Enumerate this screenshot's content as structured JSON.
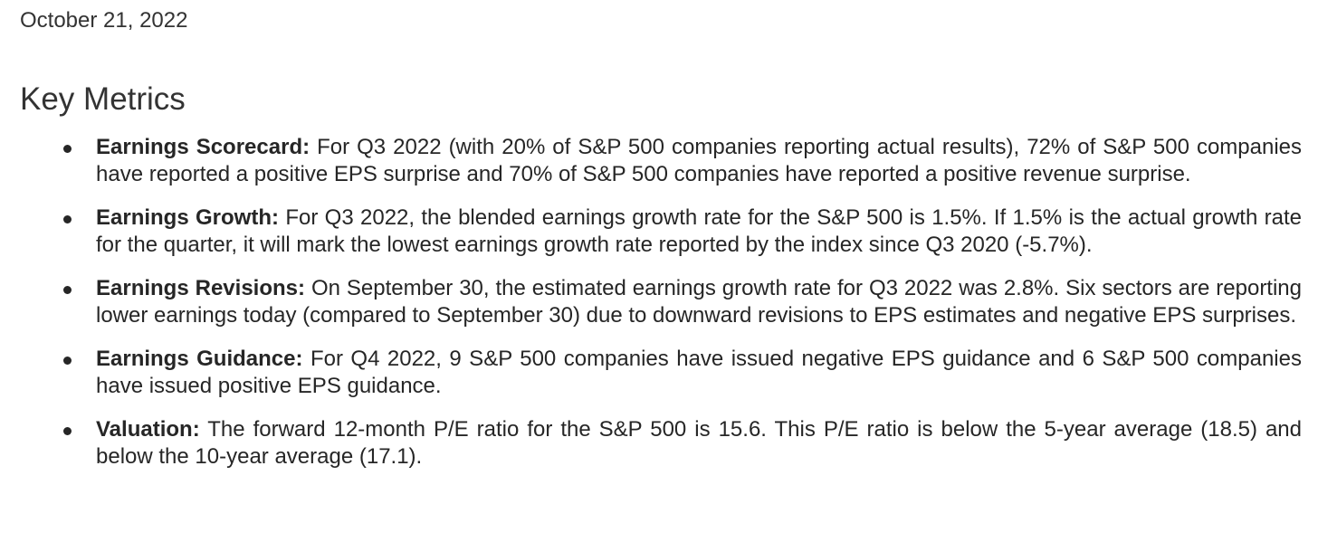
{
  "date": "October 21, 2022",
  "heading": "Key Metrics",
  "metrics": [
    {
      "label": "Earnings Scorecard:",
      "text": "For Q3 2022 (with 20% of S&P 500 companies reporting actual results), 72% of S&P 500 companies have reported a positive EPS surprise and 70% of S&P 500 companies have reported a positive revenue surprise."
    },
    {
      "label": "Earnings Growth:",
      "text": "For Q3 2022, the blended earnings growth rate for the S&P 500 is 1.5%. If 1.5% is the actual growth rate for the quarter, it will mark the lowest earnings growth rate reported by the index since Q3 2020 (-5.7%)."
    },
    {
      "label": "Earnings Revisions:",
      "text": "On September 30, the estimated earnings growth rate for Q3 2022 was 2.8%. Six sectors are reporting lower earnings today (compared to September 30) due to downward revisions to EPS estimates and negative EPS surprises."
    },
    {
      "label": "Earnings Guidance:",
      "text": "For Q4 2022, 9 S&P 500 companies have issued negative EPS guidance and 6 S&P 500 companies have issued positive EPS guidance."
    },
    {
      "label": "Valuation:",
      "text": "The forward 12-month P/E ratio for the S&P 500 is 15.6. This P/E ratio is below the 5-year average (18.5) and below the 10-year average (17.1)."
    }
  ]
}
